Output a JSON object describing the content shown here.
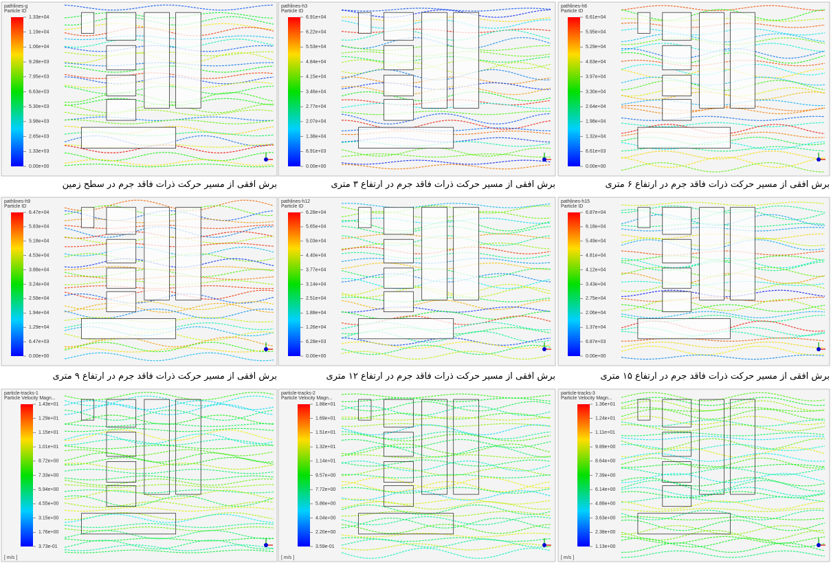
{
  "panels": [
    {
      "title": "pathlines-g",
      "legend_title": "Particle ID",
      "scale": [
        "1.33e+04",
        "1.19e+04",
        "1.06e+04",
        "9.28e+03",
        "7.95e+03",
        "6.63e+03",
        "5.30e+03",
        "3.98e+03",
        "2.65e+03",
        "1.33e+03",
        "0.00e+00"
      ],
      "caption": "برش افقی از مسیر حرکت ذرات فاقد جرم در سطح زمین"
    },
    {
      "title": "pathlines-h3",
      "legend_title": "Particle ID",
      "scale": [
        "6.91e+04",
        "6.22e+04",
        "5.53e+04",
        "4.84e+04",
        "4.15e+04",
        "3.46e+04",
        "2.77e+04",
        "2.07e+04",
        "1.38e+04",
        "6.91e+03",
        "0.00e+00"
      ],
      "caption": "برش افقی از مسیر حرکت ذرات فاقد جرم در ارتفاع ۳ متری"
    },
    {
      "title": "pathlines-h6",
      "legend_title": "Particle ID",
      "scale": [
        "6.61e+04",
        "5.95e+04",
        "5.29e+04",
        "4.63e+04",
        "3.97e+04",
        "3.30e+04",
        "2.64e+04",
        "1.98e+04",
        "1.32e+04",
        "6.61e+03",
        "0.00e+00"
      ],
      "caption": "برش افقی از مسیر حرکت ذرات فاقد جرم در ارتفاع ۶ متری"
    },
    {
      "title": "pathlines-h9",
      "legend_title": "Particle ID",
      "scale": [
        "6.47e+04",
        "5.83e+04",
        "5.18e+04",
        "4.53e+04",
        "3.88e+04",
        "3.24e+04",
        "2.59e+04",
        "1.94e+04",
        "1.29e+04",
        "6.47e+03",
        "0.00e+00"
      ],
      "caption": "برش افقی از مسیر حرکت ذرات فاقد جرم در ارتفاع ۹ متری"
    },
    {
      "title": "pathlines-h12",
      "legend_title": "Particle ID",
      "scale": [
        "6.28e+04",
        "5.65e+04",
        "5.03e+04",
        "4.40e+04",
        "3.77e+04",
        "3.14e+04",
        "2.51e+04",
        "1.88e+04",
        "1.26e+04",
        "6.28e+03",
        "0.00e+00"
      ],
      "caption": "برش افقی از مسیر حرکت ذرات فاقد جرم در ارتفاع ۱۲ متری"
    },
    {
      "title": "pathlines-h15",
      "legend_title": "Particle ID",
      "scale": [
        "6.87e+04",
        "6.18e+04",
        "5.49e+04",
        "4.81e+04",
        "4.12e+04",
        "3.43e+04",
        "2.75e+04",
        "2.06e+04",
        "1.37e+04",
        "6.87e+03",
        "0.00e+00"
      ],
      "caption": "برش افقی از مسیر حرکت ذرات فاقد جرم در ارتفاع ۱۵ متری"
    },
    {
      "title": "particle-tracks-1",
      "legend_title": "Particle Velocity Magn...",
      "scale": [
        "1.43e+01",
        "1.29e+01",
        "1.15e+01",
        "1.01e+01",
        "8.72e+00",
        "7.33e+00",
        "5.94e+00",
        "4.55e+00",
        "3.15e+00",
        "1.76e+00",
        "3.73e-01"
      ],
      "unit": "[ m/s ]"
    },
    {
      "title": "particle-tracks-2",
      "legend_title": "Particle Velocity Magn...",
      "scale": [
        "1.88e+01",
        "1.69e+01",
        "1.51e+01",
        "1.32e+01",
        "1.14e+01",
        "9.57e+00",
        "7.72e+00",
        "5.86e+00",
        "4.04e+00",
        "2.20e+00",
        "3.59e-01"
      ],
      "unit": "[ m/s ]"
    },
    {
      "title": "particle-tracks-3",
      "legend_title": "Particle Velocity Magn...",
      "scale": [
        "1.36e+01",
        "1.24e+01",
        "1.11e+01",
        "9.89e+00",
        "8.64e+00",
        "7.39e+00",
        "6.14e+00",
        "4.88e+00",
        "3.63e+00",
        "2.38e+00",
        "1.13e+00"
      ],
      "unit": "[ m/s ]"
    }
  ]
}
